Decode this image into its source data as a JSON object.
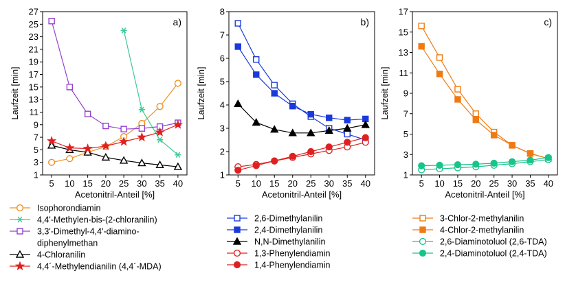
{
  "chart_data": [
    {
      "type": "line",
      "panel_label": "a)",
      "xlabel": "Acetonitril-Anteil [%]",
      "ylabel": "Laufzeit [min]",
      "xlim": [
        2.5,
        42.5
      ],
      "ylim": [
        1,
        27
      ],
      "xticks": [
        5,
        10,
        15,
        20,
        25,
        30,
        35,
        40
      ],
      "yticks": [
        1,
        3,
        5,
        7,
        9,
        11,
        13,
        15,
        17,
        19,
        21,
        23,
        25,
        27
      ],
      "series": [
        {
          "name": "Isophorondiamin",
          "color": "#f0901e",
          "marker": "circle-open",
          "x": [
            5,
            10,
            15,
            20,
            25,
            30,
            35,
            40
          ],
          "y": [
            3.0,
            3.6,
            4.6,
            5.5,
            7.1,
            9.2,
            11.9,
            15.6
          ]
        },
        {
          "name": "4,4'-Methylen-bis-(2-chloranilin)",
          "color": "#3cc89a",
          "marker": "asterisk",
          "x": [
            25,
            30,
            35,
            40
          ],
          "y": [
            24.0,
            11.4,
            6.6,
            4.2
          ]
        },
        {
          "name": "3,3'-Dimethyl-4,4'-diamino-\ndiphenylmethan",
          "color": "#9440d0",
          "marker": "square-open",
          "x": [
            5,
            10,
            15,
            20,
            25,
            30,
            35,
            40
          ],
          "y": [
            25.5,
            15.0,
            10.7,
            8.8,
            8.3,
            8.4,
            8.7,
            9.3
          ]
        },
        {
          "name": "4-Chloranilin",
          "color": "#000000",
          "marker": "triangle-open",
          "x": [
            5,
            10,
            15,
            20,
            25,
            30,
            35,
            40
          ],
          "y": [
            5.7,
            5.0,
            4.6,
            3.8,
            3.3,
            2.9,
            2.6,
            2.3
          ]
        },
        {
          "name": "4,4´-Methylendianilin (4,4´-MDA)",
          "color": "#e02020",
          "marker": "star",
          "x": [
            5,
            10,
            15,
            20,
            25,
            30,
            35,
            40
          ],
          "y": [
            6.4,
            5.3,
            5.2,
            5.6,
            6.3,
            7.0,
            7.8,
            9.0
          ]
        }
      ]
    },
    {
      "type": "line",
      "panel_label": "b)",
      "xlabel": "Acetonitril-Anteil [%]",
      "ylabel": "Laufzeit [min]",
      "xlim": [
        2.5,
        42.5
      ],
      "ylim": [
        1,
        8
      ],
      "xticks": [
        5,
        10,
        15,
        20,
        25,
        30,
        35,
        40
      ],
      "yticks": [
        1,
        2,
        3,
        4,
        5,
        6,
        7,
        8
      ],
      "series": [
        {
          "name": "2,6-Dimethylanilin",
          "color": "#1a3adc",
          "marker": "square-open",
          "x": [
            5,
            10,
            15,
            20,
            25,
            30,
            35,
            40
          ],
          "y": [
            7.5,
            5.95,
            4.85,
            4.05,
            3.5,
            3.0,
            2.75,
            2.5
          ]
        },
        {
          "name": "2,4-Dimethylanilin",
          "color": "#1a3adc",
          "marker": "square-filled",
          "x": [
            5,
            10,
            15,
            20,
            25,
            30,
            35,
            40
          ],
          "y": [
            6.5,
            5.3,
            4.5,
            3.95,
            3.6,
            3.45,
            3.35,
            3.4
          ]
        },
        {
          "name": "N,N-Dimethylanilin",
          "color": "#000000",
          "marker": "triangle-filled",
          "x": [
            5,
            10,
            15,
            20,
            25,
            30,
            35,
            40
          ],
          "y": [
            4.05,
            3.25,
            2.95,
            2.8,
            2.8,
            2.9,
            3.0,
            3.15
          ]
        },
        {
          "name": "1,3-Phenylendiamin",
          "color": "#e02020",
          "marker": "circle-open",
          "x": [
            5,
            10,
            15,
            20,
            25,
            30,
            35,
            40
          ],
          "y": [
            1.35,
            1.45,
            1.6,
            1.75,
            1.9,
            2.05,
            2.2,
            2.4
          ]
        },
        {
          "name": "1,4-Phenylendiamin",
          "color": "#e02020",
          "marker": "circle-filled",
          "x": [
            5,
            10,
            15,
            20,
            25,
            30,
            35,
            40
          ],
          "y": [
            1.2,
            1.4,
            1.6,
            1.8,
            2.0,
            2.2,
            2.4,
            2.6
          ]
        }
      ]
    },
    {
      "type": "line",
      "panel_label": "c)",
      "xlabel": "Acetonitril-Anteil [%]",
      "ylabel": "Laufzeit [min]",
      "xlim": [
        2.5,
        42.5
      ],
      "ylim": [
        1,
        17
      ],
      "xticks": [
        5,
        10,
        15,
        20,
        25,
        30,
        35,
        40
      ],
      "yticks": [
        1,
        3,
        5,
        7,
        9,
        11,
        13,
        15,
        17
      ],
      "series": [
        {
          "name": "3-Chlor-2-methylanilin",
          "color": "#f07a12",
          "marker": "square-open",
          "x": [
            5,
            10,
            15,
            20,
            25,
            30,
            35,
            40
          ],
          "y": [
            15.6,
            12.5,
            9.4,
            7.0,
            5.2,
            3.9,
            3.1,
            2.6
          ]
        },
        {
          "name": "4-Chlor-2-methylanilin",
          "color": "#f07a12",
          "marker": "square-filled",
          "x": [
            5,
            10,
            15,
            20,
            25,
            30,
            35,
            40
          ],
          "y": [
            13.6,
            10.9,
            8.4,
            6.4,
            4.9,
            3.9,
            3.1,
            2.6
          ]
        },
        {
          "name": "2,6-Diaminotoluol (2,6-TDA)",
          "color": "#18c48c",
          "marker": "circle-open",
          "x": [
            5,
            10,
            15,
            20,
            25,
            30,
            35,
            40
          ],
          "y": [
            1.5,
            1.6,
            1.7,
            1.8,
            1.95,
            2.1,
            2.3,
            2.5
          ]
        },
        {
          "name": "2,4-Diaminotoluol (2,4-TDA)",
          "color": "#18c48c",
          "marker": "circle-filled",
          "x": [
            5,
            10,
            15,
            20,
            25,
            30,
            35,
            40
          ],
          "y": [
            1.9,
            1.95,
            2.0,
            2.05,
            2.15,
            2.3,
            2.45,
            2.7
          ]
        }
      ]
    }
  ]
}
